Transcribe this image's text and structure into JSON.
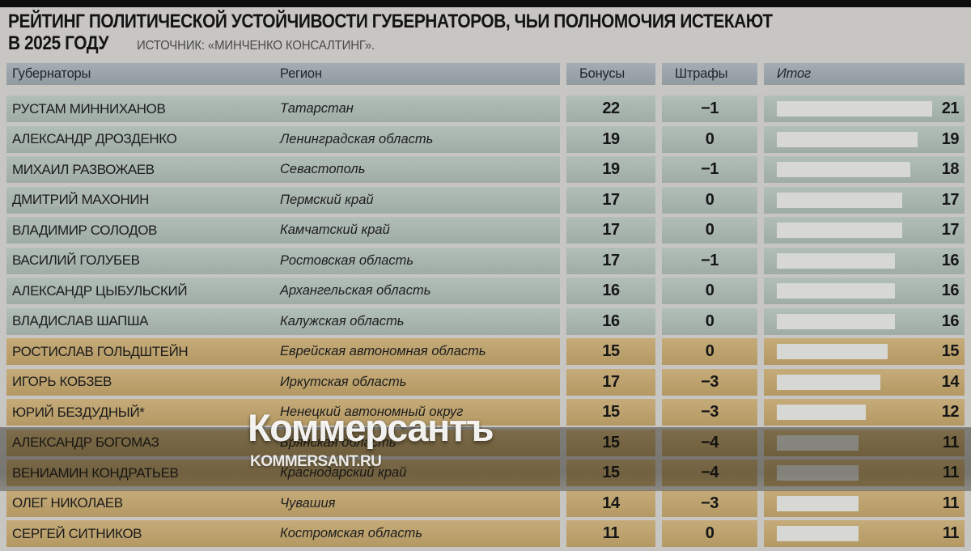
{
  "title": {
    "line1": "РЕЙТИНГ ПОЛИТИЧЕСКОЙ УСТОЙЧИВОСТИ ГУБЕРНАТОРОВ, ЧЬИ ПОЛНОМОЧИЯ ИСТЕКАЮТ",
    "line2": "В 2025 ГОДУ",
    "source": "ИСТОЧНИК: «МИНЧЕНКО КОНСАЛТИНГ»."
  },
  "watermark": {
    "brand": "Коммерсантъ",
    "site": "KOMMERSANT.RU"
  },
  "colors": {
    "bg": "#c8c6c3",
    "topbar": "#0e0e0e",
    "header-cell": "#9aa4aa",
    "row-green": "#a9b7b0",
    "row-tan": "#bfa26a",
    "bar": "#d7d8d3",
    "source": "#4b4b4b"
  },
  "chart_data": {
    "type": "table",
    "title": "РЕЙТИНГ ПОЛИТИЧЕСКОЙ УСТОЙЧИВОСТИ ГУБЕРНАТОРОВ, ЧЬИ ПОЛНОМОЧИЯ ИСТЕКАЮТ В 2025 ГОДУ",
    "source": "ИСТОЧНИК: «МИНЧЕНКО КОНСАЛТИНГ».",
    "columns": {
      "governor": "Губернаторы",
      "region": "Регион",
      "bonuses": "Бонусы",
      "penalties": "Штрафы",
      "total": "Итог"
    },
    "bar_scale_max": 21,
    "legend_note": "total column shown as horizontal gray bar proportional to value",
    "rows": [
      {
        "governor": "РУСТАМ МИННИХАНОВ",
        "region": "Татарстан",
        "bonuses": 22,
        "penalties": -1,
        "total": 21,
        "band": "green"
      },
      {
        "governor": "АЛЕКСАНДР ДРОЗДЕНКО",
        "region": "Ленинградская область",
        "bonuses": 19,
        "penalties": 0,
        "total": 19,
        "band": "green"
      },
      {
        "governor": "МИХАИЛ РАЗВОЖАЕВ",
        "region": "Севастополь",
        "bonuses": 19,
        "penalties": -1,
        "total": 18,
        "band": "green"
      },
      {
        "governor": "ДМИТРИЙ МАХОНИН",
        "region": "Пермский край",
        "bonuses": 17,
        "penalties": 0,
        "total": 17,
        "band": "green"
      },
      {
        "governor": "ВЛАДИМИР СОЛОДОВ",
        "region": "Камчатский край",
        "bonuses": 17,
        "penalties": 0,
        "total": 17,
        "band": "green"
      },
      {
        "governor": "ВАСИЛИЙ ГОЛУБЕВ",
        "region": "Ростовская область",
        "bonuses": 17,
        "penalties": -1,
        "total": 16,
        "band": "green"
      },
      {
        "governor": "АЛЕКСАНДР ЦЫБУЛЬСКИЙ",
        "region": "Архангельская область",
        "bonuses": 16,
        "penalties": 0,
        "total": 16,
        "band": "green"
      },
      {
        "governor": "ВЛАДИСЛАВ ШАПША",
        "region": "Калужская область",
        "bonuses": 16,
        "penalties": 0,
        "total": 16,
        "band": "green"
      },
      {
        "governor": "РОСТИСЛАВ ГОЛЬДШТЕЙН",
        "region": "Еврейская автономная область",
        "bonuses": 15,
        "penalties": 0,
        "total": 15,
        "band": "tan"
      },
      {
        "governor": "ИГОРЬ КОБЗЕВ",
        "region": "Иркутская область",
        "bonuses": 17,
        "penalties": -3,
        "total": 14,
        "band": "tan"
      },
      {
        "governor": "ЮРИЙ БЕЗДУДНЫЙ*",
        "region": "Ненецкий автономный округ",
        "bonuses": 15,
        "penalties": -3,
        "total": 12,
        "band": "tan"
      },
      {
        "governor": "АЛЕКСАНДР БОГОМАЗ",
        "region": "Брянская область",
        "bonuses": 15,
        "penalties": -4,
        "total": 11,
        "band": "tan"
      },
      {
        "governor": "ВЕНИАМИН КОНДРАТЬЕВ",
        "region": "Краснодарский край",
        "bonuses": 15,
        "penalties": -4,
        "total": 11,
        "band": "tan"
      },
      {
        "governor": "ОЛЕГ НИКОЛАЕВ",
        "region": "Чувашия",
        "bonuses": 14,
        "penalties": -3,
        "total": 11,
        "band": "tan"
      },
      {
        "governor": "СЕРГЕЙ СИТНИКОВ",
        "region": "Костромская область",
        "bonuses": 11,
        "penalties": 0,
        "total": 11,
        "band": "tan"
      }
    ]
  }
}
